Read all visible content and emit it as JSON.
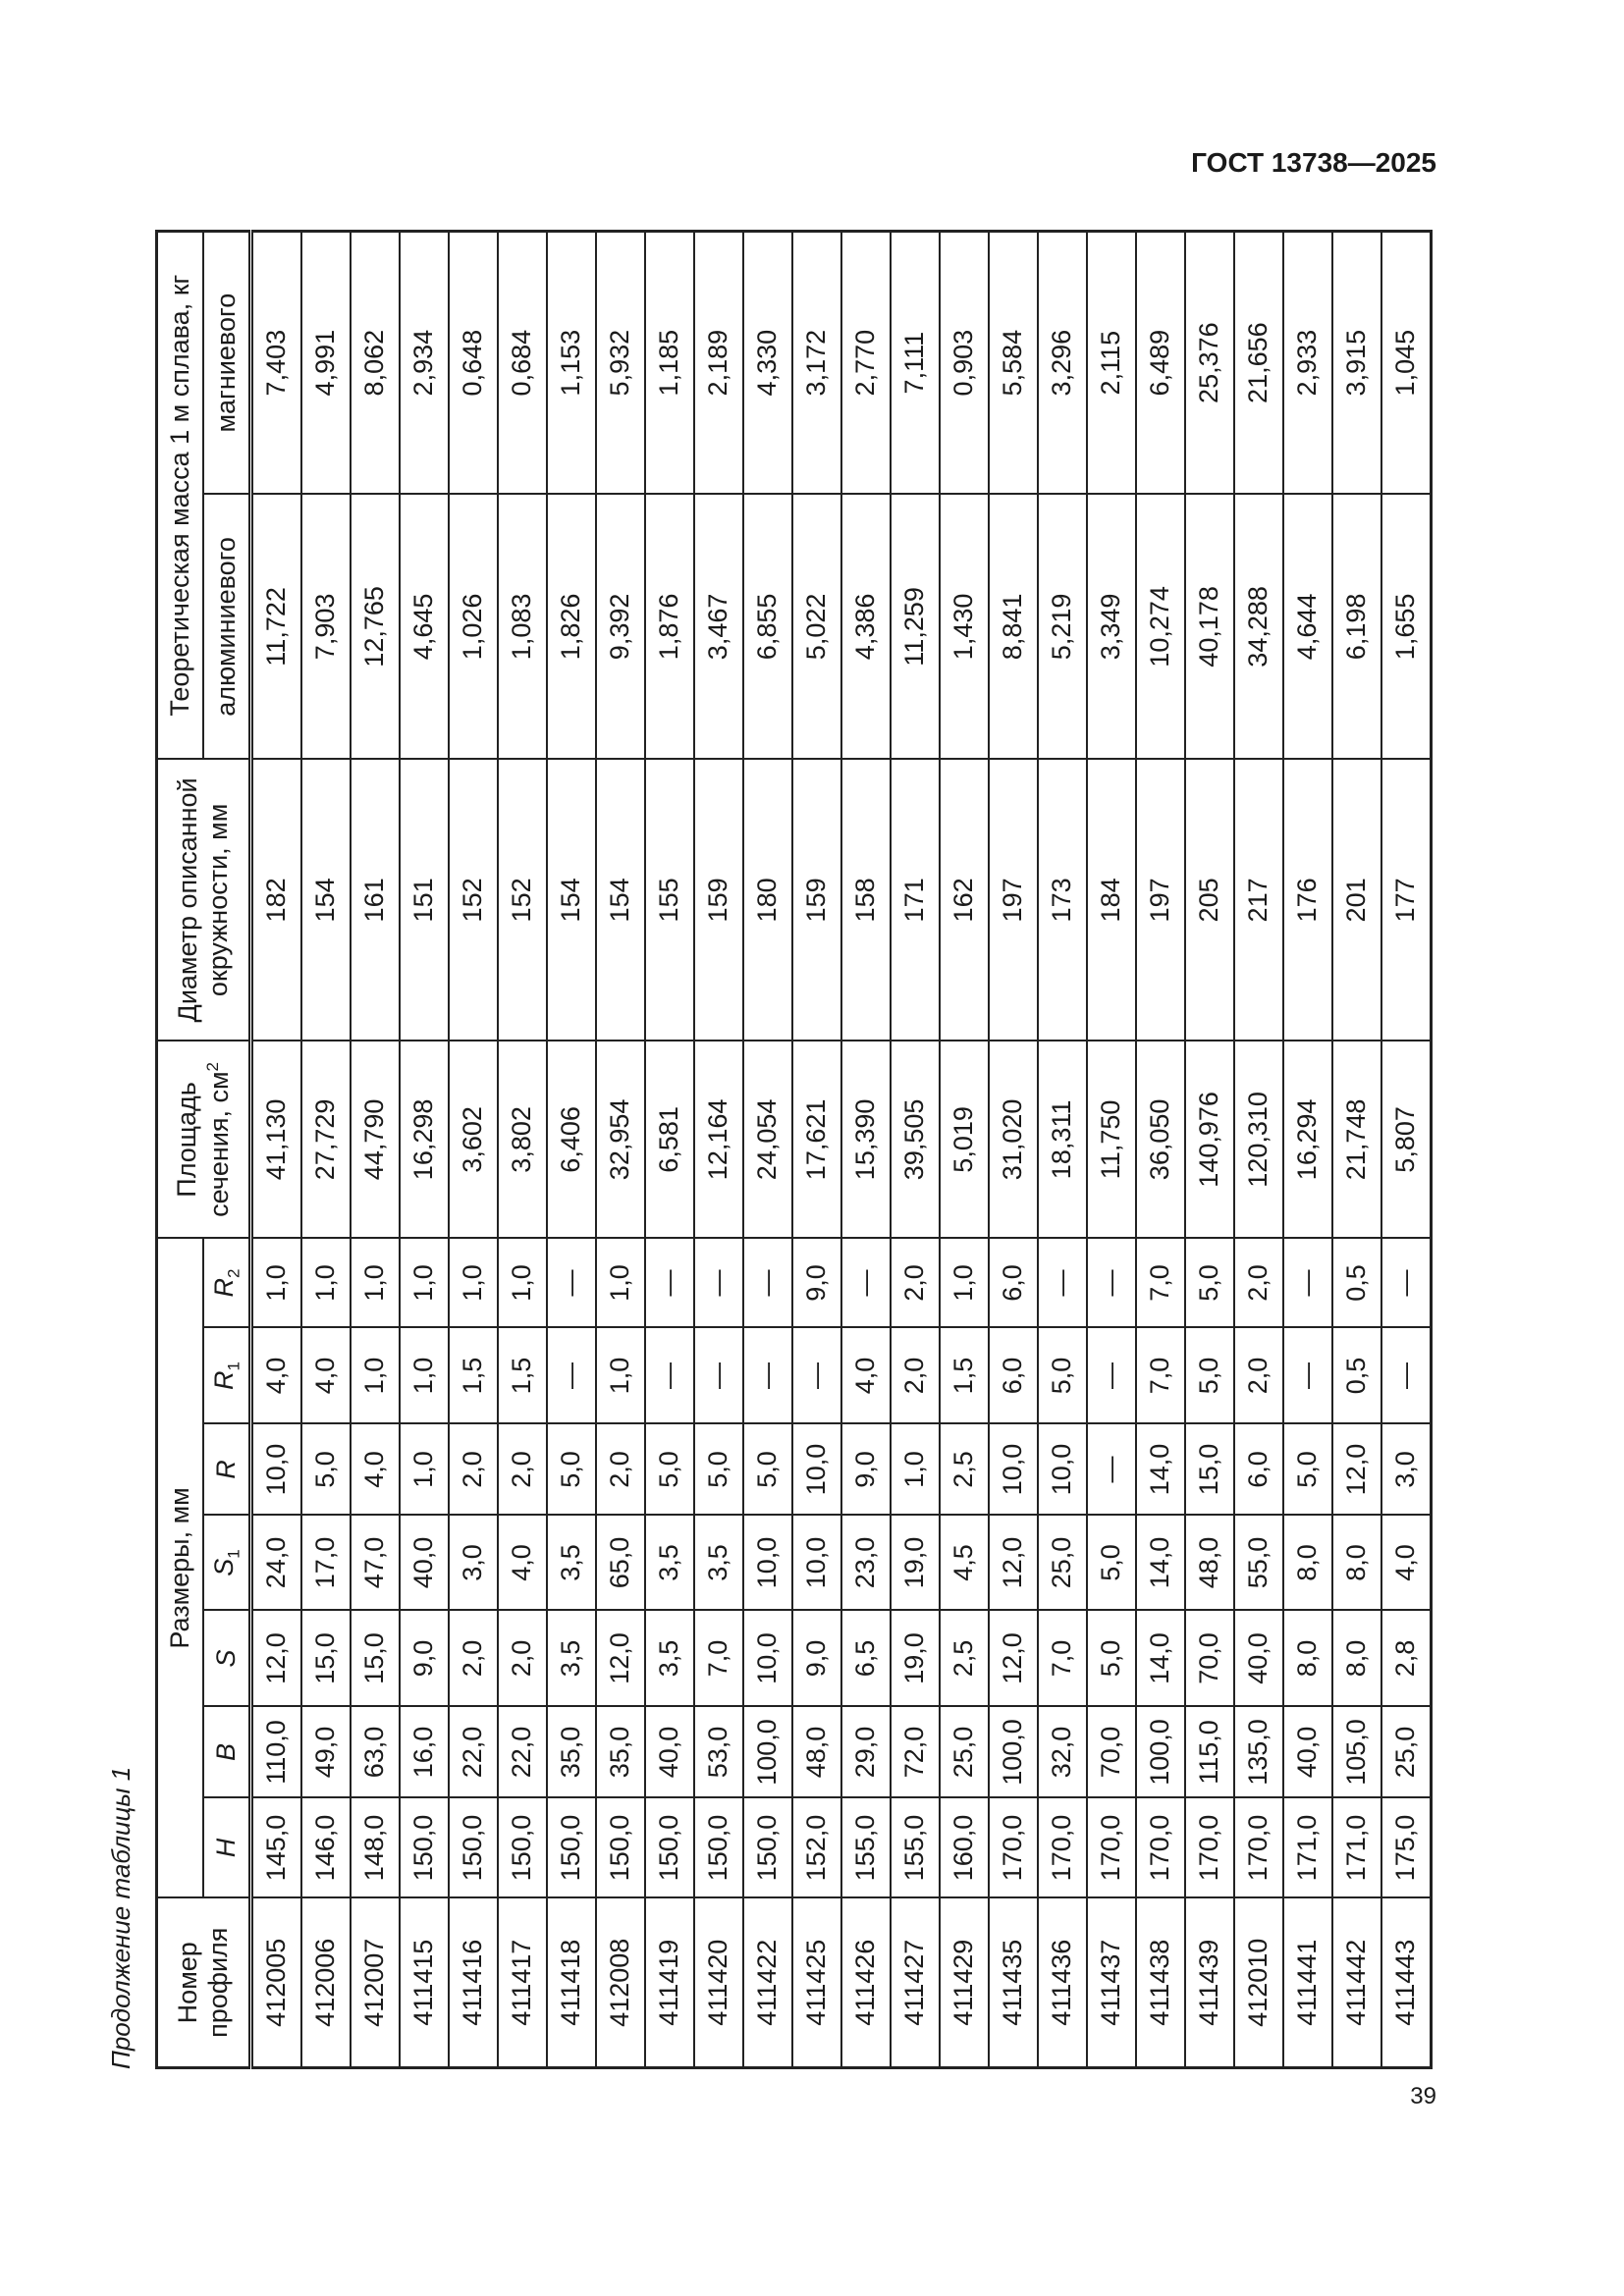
{
  "header": {
    "doc_code": "ГОСТ 13738—2025"
  },
  "footer": {
    "page_number": "39"
  },
  "table": {
    "caption": "Продолжение таблицы 1",
    "headers": {
      "number": "Номер профиля",
      "dimensions": "Размеры, мм",
      "dims": [
        {
          "sym": "H",
          "sub": ""
        },
        {
          "sym": "B",
          "sub": ""
        },
        {
          "sym": "S",
          "sub": ""
        },
        {
          "sym": "S",
          "sub": "1"
        },
        {
          "sym": "R",
          "sub": ""
        },
        {
          "sym": "R",
          "sub": "1"
        },
        {
          "sym": "R",
          "sub": "2"
        }
      ],
      "area": "Площадь сечения, см",
      "area_sup": "2",
      "diameter": "Диаметр описанной окружности, мм",
      "mass": "Теоретическая масса 1 м сплава, кг",
      "mass_al": "алюминиевого",
      "mass_mg": "магниевого"
    },
    "rows": [
      [
        "412005",
        "145,0",
        "110,0",
        "12,0",
        "24,0",
        "10,0",
        "4,0",
        "1,0",
        "41,130",
        "182",
        "11,722",
        "7,403"
      ],
      [
        "412006",
        "146,0",
        "49,0",
        "15,0",
        "17,0",
        "5,0",
        "4,0",
        "1,0",
        "27,729",
        "154",
        "7,903",
        "4,991"
      ],
      [
        "412007",
        "148,0",
        "63,0",
        "15,0",
        "47,0",
        "4,0",
        "1,0",
        "1,0",
        "44,790",
        "161",
        "12,765",
        "8,062"
      ],
      [
        "411415",
        "150,0",
        "16,0",
        "9,0",
        "40,0",
        "1,0",
        "1,0",
        "1,0",
        "16,298",
        "151",
        "4,645",
        "2,934"
      ],
      [
        "411416",
        "150,0",
        "22,0",
        "2,0",
        "3,0",
        "2,0",
        "1,5",
        "1,0",
        "3,602",
        "152",
        "1,026",
        "0,648"
      ],
      [
        "411417",
        "150,0",
        "22,0",
        "2,0",
        "4,0",
        "2,0",
        "1,5",
        "1,0",
        "3,802",
        "152",
        "1,083",
        "0,684"
      ],
      [
        "411418",
        "150,0",
        "35,0",
        "3,5",
        "3,5",
        "5,0",
        "—",
        "—",
        "6,406",
        "154",
        "1,826",
        "1,153"
      ],
      [
        "412008",
        "150,0",
        "35,0",
        "12,0",
        "65,0",
        "2,0",
        "1,0",
        "1,0",
        "32,954",
        "154",
        "9,392",
        "5,932"
      ],
      [
        "411419",
        "150,0",
        "40,0",
        "3,5",
        "3,5",
        "5,0",
        "—",
        "—",
        "6,581",
        "155",
        "1,876",
        "1,185"
      ],
      [
        "411420",
        "150,0",
        "53,0",
        "7,0",
        "3,5",
        "5,0",
        "—",
        "—",
        "12,164",
        "159",
        "3,467",
        "2,189"
      ],
      [
        "411422",
        "150,0",
        "100,0",
        "10,0",
        "10,0",
        "5,0",
        "—",
        "—",
        "24,054",
        "180",
        "6,855",
        "4,330"
      ],
      [
        "411425",
        "152,0",
        "48,0",
        "9,0",
        "10,0",
        "10,0",
        "—",
        "9,0",
        "17,621",
        "159",
        "5,022",
        "3,172"
      ],
      [
        "411426",
        "155,0",
        "29,0",
        "6,5",
        "23,0",
        "9,0",
        "4,0",
        "—",
        "15,390",
        "158",
        "4,386",
        "2,770"
      ],
      [
        "411427",
        "155,0",
        "72,0",
        "19,0",
        "19,0",
        "1,0",
        "2,0",
        "2,0",
        "39,505",
        "171",
        "11,259",
        "7,111"
      ],
      [
        "411429",
        "160,0",
        "25,0",
        "2,5",
        "4,5",
        "2,5",
        "1,5",
        "1,0",
        "5,019",
        "162",
        "1,430",
        "0,903"
      ],
      [
        "411435",
        "170,0",
        "100,0",
        "12,0",
        "12,0",
        "10,0",
        "6,0",
        "6,0",
        "31,020",
        "197",
        "8,841",
        "5,584"
      ],
      [
        "411436",
        "170,0",
        "32,0",
        "7,0",
        "25,0",
        "10,0",
        "5,0",
        "—",
        "18,311",
        "173",
        "5,219",
        "3,296"
      ],
      [
        "411437",
        "170,0",
        "70,0",
        "5,0",
        "5,0",
        "—",
        "—",
        "—",
        "11,750",
        "184",
        "3,349",
        "2,115"
      ],
      [
        "411438",
        "170,0",
        "100,0",
        "14,0",
        "14,0",
        "14,0",
        "7,0",
        "7,0",
        "36,050",
        "197",
        "10,274",
        "6,489"
      ],
      [
        "411439",
        "170,0",
        "115,0",
        "70,0",
        "48,0",
        "15,0",
        "5,0",
        "5,0",
        "140,976",
        "205",
        "40,178",
        "25,376"
      ],
      [
        "412010",
        "170,0",
        "135,0",
        "40,0",
        "55,0",
        "6,0",
        "2,0",
        "2,0",
        "120,310",
        "217",
        "34,288",
        "21,656"
      ],
      [
        "411441",
        "171,0",
        "40,0",
        "8,0",
        "8,0",
        "5,0",
        "—",
        "—",
        "16,294",
        "176",
        "4,644",
        "2,933"
      ],
      [
        "411442",
        "171,0",
        "105,0",
        "8,0",
        "8,0",
        "12,0",
        "0,5",
        "0,5",
        "21,748",
        "201",
        "6,198",
        "3,915"
      ],
      [
        "411443",
        "175,0",
        "25,0",
        "2,8",
        "4,0",
        "3,0",
        "—",
        "—",
        "5,807",
        "177",
        "1,655",
        "1,045"
      ]
    ]
  }
}
